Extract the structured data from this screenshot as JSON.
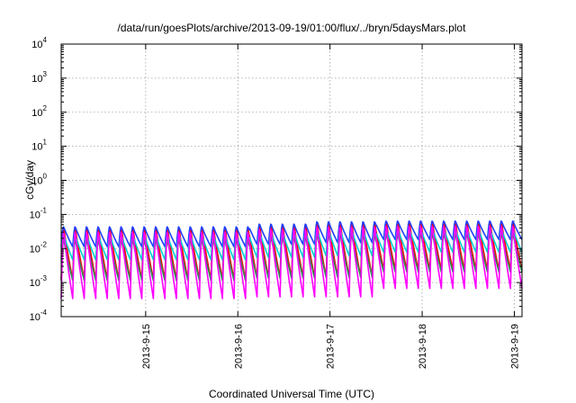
{
  "chart_data": {
    "type": "line",
    "title": "/data/run/goesPlots/archive/2013-09-19/01:00/flux/../bryn/5daysMars.plot",
    "xlabel": "Coordinated Universal Time (UTC)",
    "ylabel": "cGy/day",
    "x_start": "2013-09-14T02:00",
    "x_end": "2013-09-19T02:00",
    "x_ticks": [
      "2013-9-15",
      "2013-9-16",
      "2013-9-17",
      "2013-9-18",
      "2013-9-19"
    ],
    "y_scale": "log",
    "ylim": [
      0.0001,
      10000
    ],
    "y_ticks": [
      {
        "base": "10",
        "exp": "-4"
      },
      {
        "base": "10",
        "exp": "-3"
      },
      {
        "base": "10",
        "exp": "-2"
      },
      {
        "base": "10",
        "exp": "-1"
      },
      {
        "base": "10",
        "exp": "0"
      },
      {
        "base": "10",
        "exp": "1"
      },
      {
        "base": "10",
        "exp": "2"
      },
      {
        "base": "10",
        "exp": "3"
      },
      {
        "base": "10",
        "exp": "4"
      }
    ],
    "grid": true,
    "legend": "none",
    "oscillation_period_hours": 3,
    "segments": [
      {
        "from": "2013-09-14T02:00",
        "to": "2013-09-16T03:00",
        "peak_exp": -1.35,
        "trough_exp": -3.35
      },
      {
        "from": "2013-09-16T03:00",
        "to": "2013-09-16T20:00",
        "peak_exp": -1.27,
        "trough_exp": -3.3
      },
      {
        "from": "2013-09-16T20:00",
        "to": "2013-09-17T12:00",
        "peak_exp": -1.2,
        "trough_exp": -3.3
      },
      {
        "from": "2013-09-17T12:00",
        "to": "2013-09-19T02:00",
        "peak_exp": -1.18,
        "trough_exp": -3.05
      }
    ],
    "series": [
      {
        "color": "#ff0000",
        "peak_offset": 0.0,
        "depth": 0.78
      },
      {
        "color": "#1f3fff",
        "peak_offset": 0.0,
        "depth": 0.3
      },
      {
        "color": "#00d0d0",
        "peak_offset": -0.22,
        "depth": 0.38
      },
      {
        "color": "#2e8b57",
        "peak_offset": -0.35,
        "depth": 0.62
      },
      {
        "color": "#ff00ff",
        "peak_offset": -0.12,
        "depth": 1.0
      }
    ]
  }
}
